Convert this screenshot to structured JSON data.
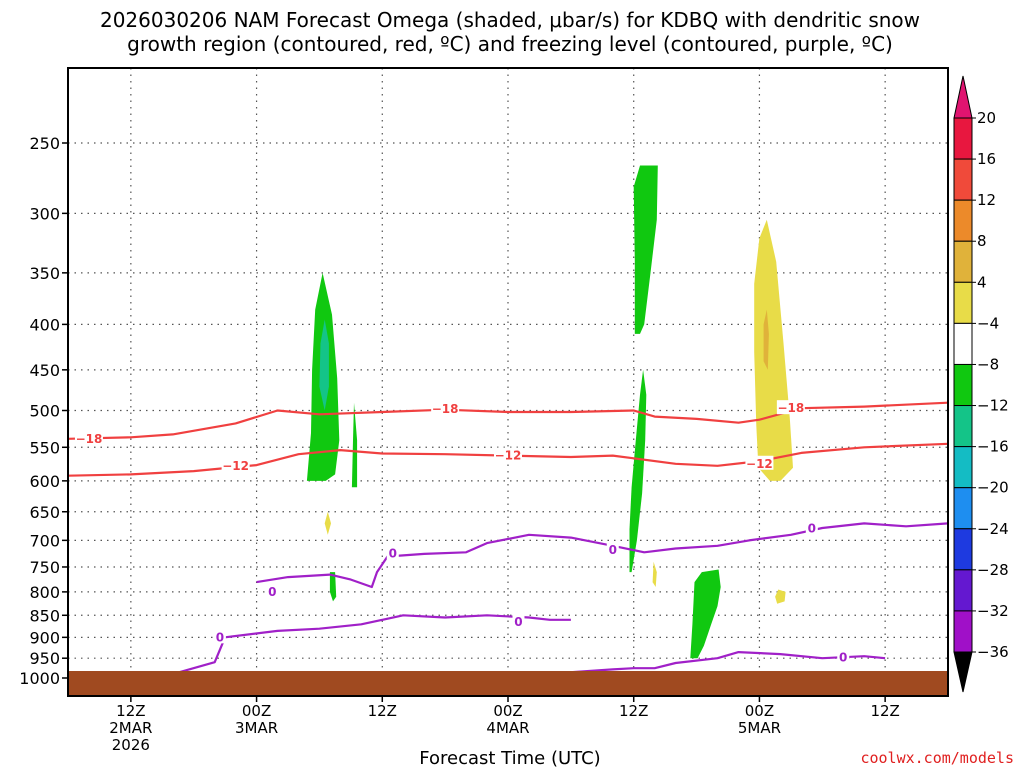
{
  "chart_data": {
    "type": "time-height contour",
    "title_line1": "2026030206 NAM Forecast Omega (shaded, μbar/s) for KDBQ with dendritic snow",
    "title_line2": "growth region (contoured, red, ºC) and freezing level (contoured, purple, ºC)",
    "xlabel": "Forecast Time (UTC)",
    "credit": "coolwx.com/models",
    "x_range_hours": [
      0,
      84
    ],
    "y_range_hpa": [
      1000,
      200
    ],
    "y_ticks": [
      250,
      300,
      350,
      400,
      450,
      500,
      550,
      600,
      650,
      700,
      750,
      800,
      850,
      900,
      950,
      1000
    ],
    "x_ticks": [
      {
        "hour": 6,
        "lines": [
          "12Z",
          "2MAR",
          "2026"
        ]
      },
      {
        "hour": 18,
        "lines": [
          "00Z",
          "3MAR"
        ]
      },
      {
        "hour": 30,
        "lines": [
          "12Z"
        ]
      },
      {
        "hour": 42,
        "lines": [
          "00Z",
          "4MAR"
        ]
      },
      {
        "hour": 54,
        "lines": [
          "12Z"
        ]
      },
      {
        "hour": 66,
        "lines": [
          "00Z",
          "5MAR"
        ]
      },
      {
        "hour": 78,
        "lines": [
          "12Z"
        ]
      }
    ],
    "colorbar": {
      "levels": [
        20,
        16,
        12,
        8,
        4,
        -4,
        -8,
        -12,
        -16,
        -20,
        -24,
        -28,
        -32,
        -36
      ],
      "colors": [
        "#e8173f",
        "#f04a3a",
        "#ec8a2a",
        "#e0b23a",
        "#e8dc48",
        "#ffffff",
        "#10c810",
        "#14c488",
        "#14bcc4",
        "#1e8ef0",
        "#1e3ae0",
        "#6418d0",
        "#a010c8",
        "#a8a8a8"
      ],
      "top_arrow_color": "#e01470",
      "bottom_arrow_color": "#000000"
    },
    "series": [
      {
        "name": "-18",
        "color": "#f04040",
        "label": "−18",
        "points": [
          [
            0,
            538
          ],
          [
            6,
            536
          ],
          [
            10,
            532
          ],
          [
            16,
            517
          ],
          [
            20,
            500
          ],
          [
            24,
            505
          ],
          [
            30,
            502
          ],
          [
            36,
            499
          ],
          [
            42,
            502
          ],
          [
            48,
            502
          ],
          [
            54,
            500
          ],
          [
            56,
            508
          ],
          [
            60,
            511
          ],
          [
            64,
            516
          ],
          [
            66,
            512
          ],
          [
            70,
            497
          ],
          [
            76,
            495
          ],
          [
            84,
            490
          ]
        ],
        "label_at": [
          [
            2,
            538
          ],
          [
            36,
            498
          ],
          [
            69,
            497
          ]
        ]
      },
      {
        "name": "-12",
        "color": "#f04040",
        "label": "−12",
        "points": [
          [
            0,
            592
          ],
          [
            6,
            590
          ],
          [
            12,
            585
          ],
          [
            18,
            576
          ],
          [
            22,
            560
          ],
          [
            26,
            554
          ],
          [
            30,
            559
          ],
          [
            36,
            560
          ],
          [
            42,
            562
          ],
          [
            48,
            564
          ],
          [
            52,
            562
          ],
          [
            54,
            566
          ],
          [
            58,
            574
          ],
          [
            62,
            577
          ],
          [
            66,
            570
          ],
          [
            70,
            558
          ],
          [
            76,
            550
          ],
          [
            84,
            545
          ]
        ],
        "label_at": [
          [
            16,
            577
          ],
          [
            42,
            562
          ],
          [
            66,
            574
          ]
        ]
      },
      {
        "name": "freezing level",
        "color": "#a020c8",
        "label": "0",
        "points": [
          [
            10,
            990
          ],
          [
            14,
            960
          ],
          [
            15,
            900
          ],
          [
            20,
            885
          ],
          [
            24,
            880
          ],
          [
            28,
            870
          ],
          [
            32,
            850
          ],
          [
            36,
            855
          ],
          [
            40,
            850
          ],
          [
            44,
            855
          ],
          [
            46,
            860
          ],
          [
            48,
            860
          ]
        ],
        "label_at": [
          [
            14.5,
            900
          ],
          [
            43,
            865
          ]
        ]
      },
      {
        "name": "freezing level upper",
        "color": "#a020c8",
        "label": "0",
        "points": [
          [
            18,
            780
          ],
          [
            21,
            770
          ],
          [
            25,
            765
          ],
          [
            27,
            775
          ],
          [
            29,
            790
          ],
          [
            29.5,
            760
          ],
          [
            30.5,
            730
          ],
          [
            34,
            725
          ],
          [
            38,
            722
          ],
          [
            40,
            705
          ],
          [
            44,
            690
          ],
          [
            48,
            695
          ],
          [
            52,
            710
          ],
          [
            55,
            722
          ],
          [
            58,
            715
          ],
          [
            62,
            710
          ],
          [
            65,
            700
          ],
          [
            69,
            690
          ],
          [
            72,
            678
          ],
          [
            76,
            670
          ],
          [
            80,
            675
          ],
          [
            84,
            670
          ]
        ],
        "label_at": [
          [
            19.5,
            800
          ],
          [
            31,
            724
          ],
          [
            52,
            718
          ],
          [
            71,
            679
          ]
        ]
      },
      {
        "name": "freezing level low",
        "color": "#a020c8",
        "label": "0",
        "points": [
          [
            48,
            985
          ],
          [
            52,
            978
          ],
          [
            54,
            975
          ],
          [
            56,
            975
          ],
          [
            58,
            962
          ],
          [
            62,
            950
          ],
          [
            64,
            935
          ],
          [
            68,
            940
          ],
          [
            72,
            950
          ],
          [
            76,
            945
          ],
          [
            78,
            950
          ]
        ],
        "label_at": [
          [
            74,
            948
          ]
        ]
      }
    ],
    "omega_areas": [
      {
        "value": -8,
        "color": "#10c810",
        "center": [
          24.3,
          470
        ],
        "note": "ascent"
      },
      {
        "value": -12,
        "color": "#14c488",
        "center": [
          24.3,
          430
        ],
        "note": "ascent core"
      },
      {
        "value": -8,
        "color": "#10c810",
        "center": [
          27.3,
          540
        ],
        "note": "ascent"
      },
      {
        "value": -8,
        "color": "#10c810",
        "center": [
          25.2,
          790
        ],
        "note": "ascent"
      },
      {
        "value": -8,
        "color": "#10c810",
        "center": [
          55.4,
          330
        ],
        "note": "ascent"
      },
      {
        "value": -8,
        "color": "#10c810",
        "center": [
          54.3,
          600
        ],
        "note": "ascent"
      },
      {
        "value": -8,
        "color": "#10c810",
        "center": [
          60.5,
          840
        ],
        "note": "ascent"
      },
      {
        "value": 4,
        "color": "#e8dc48",
        "center": [
          66.7,
          450
        ],
        "note": "descent"
      },
      {
        "value": 8,
        "color": "#e0b23a",
        "center": [
          66.7,
          410
        ],
        "note": "descent core"
      },
      {
        "value": 4,
        "color": "#e8dc48",
        "center": [
          24.7,
          670
        ],
        "note": "descent"
      },
      {
        "value": 4,
        "color": "#e8dc48",
        "center": [
          56.0,
          760
        ],
        "note": "descent"
      },
      {
        "value": 4,
        "color": "#e8dc48",
        "center": [
          68.0,
          800
        ],
        "note": "descent"
      }
    ]
  }
}
